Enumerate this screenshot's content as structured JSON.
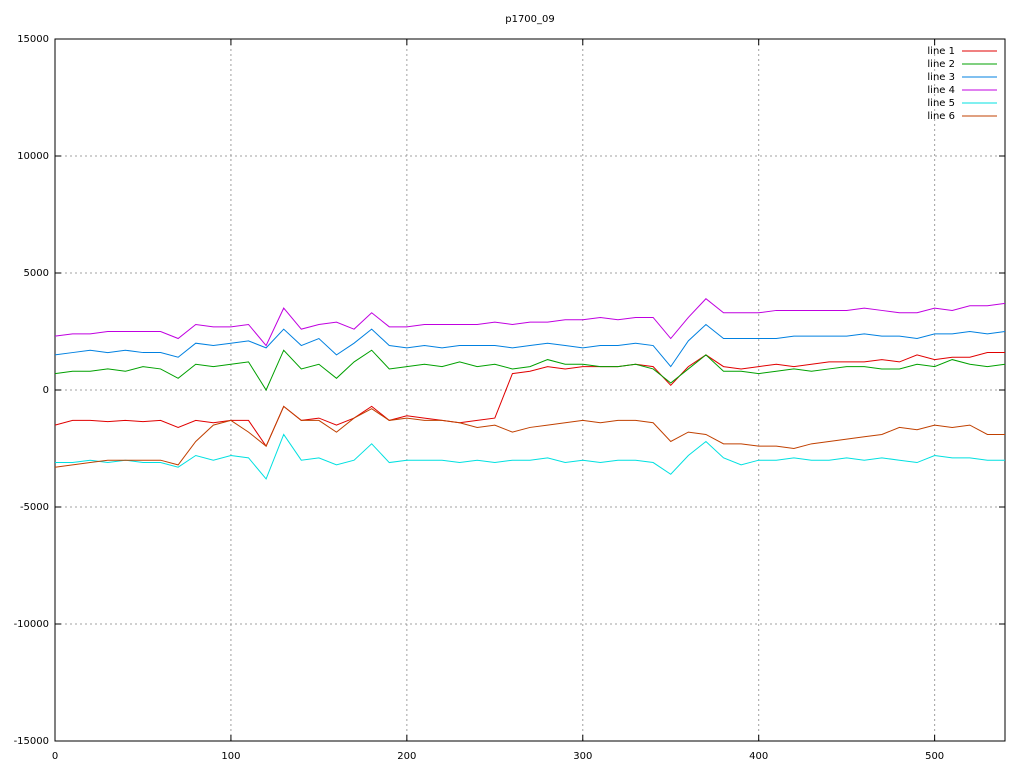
{
  "chart_data": {
    "type": "line",
    "title": "p1700_09",
    "x": [
      0,
      10,
      20,
      30,
      40,
      50,
      60,
      70,
      80,
      90,
      100,
      110,
      120,
      130,
      140,
      150,
      160,
      170,
      180,
      190,
      200,
      210,
      220,
      230,
      240,
      250,
      260,
      270,
      280,
      290,
      300,
      310,
      320,
      330,
      340,
      350,
      360,
      370,
      380,
      390,
      400,
      410,
      420,
      430,
      440,
      450,
      460,
      470,
      480,
      490,
      500,
      510,
      520,
      530,
      540
    ],
    "xlim": [
      0,
      540
    ],
    "xticks": [
      0,
      100,
      200,
      300,
      400,
      500
    ],
    "ylim": [
      -15000,
      15000
    ],
    "yticks": [
      -15000,
      -10000,
      -5000,
      0,
      5000,
      10000,
      15000
    ],
    "grid": true,
    "legend": "top-right",
    "series": [
      {
        "name": "line 1",
        "color": "#e00000",
        "values": [
          -1500,
          -1300,
          -1300,
          -1350,
          -1300,
          -1350,
          -1300,
          -1600,
          -1300,
          -1400,
          -1300,
          -1300,
          -2400,
          -700,
          -1300,
          -1200,
          -1500,
          -1200,
          -700,
          -1300,
          -1100,
          -1200,
          -1300,
          -1400,
          -1300,
          -1200,
          700,
          800,
          1000,
          900,
          1000,
          1000,
          1000,
          1100,
          1000,
          200,
          1000,
          1500,
          1000,
          900,
          1000,
          1100,
          1000,
          1100,
          1200,
          1200,
          1200,
          1300,
          1200,
          1500,
          1300,
          1400,
          1400,
          1600,
          1600
        ]
      },
      {
        "name": "line 2",
        "color": "#00a000",
        "values": [
          700,
          800,
          800,
          900,
          800,
          1000,
          900,
          500,
          1100,
          1000,
          1100,
          1200,
          0,
          1700,
          900,
          1100,
          500,
          1200,
          1700,
          900,
          1000,
          1100,
          1000,
          1200,
          1000,
          1100,
          900,
          1000,
          1300,
          1100,
          1100,
          1000,
          1000,
          1100,
          900,
          300,
          900,
          1500,
          800,
          800,
          700,
          800,
          900,
          800,
          900,
          1000,
          1000,
          900,
          900,
          1100,
          1000,
          1300,
          1100,
          1000,
          1100
        ]
      },
      {
        "name": "line 3",
        "color": "#0080e0",
        "values": [
          1500,
          1600,
          1700,
          1600,
          1700,
          1600,
          1600,
          1400,
          2000,
          1900,
          2000,
          2100,
          1800,
          2600,
          1900,
          2200,
          1500,
          2000,
          2600,
          1900,
          1800,
          1900,
          1800,
          1900,
          1900,
          1900,
          1800,
          1900,
          2000,
          1900,
          1800,
          1900,
          1900,
          2000,
          1900,
          1000,
          2100,
          2800,
          2200,
          2200,
          2200,
          2200,
          2300,
          2300,
          2300,
          2300,
          2400,
          2300,
          2300,
          2200,
          2400,
          2400,
          2500,
          2400,
          2500
        ]
      },
      {
        "name": "line 4",
        "color": "#c000e0",
        "values": [
          2300,
          2400,
          2400,
          2500,
          2500,
          2500,
          2500,
          2200,
          2800,
          2700,
          2700,
          2800,
          1900,
          3500,
          2600,
          2800,
          2900,
          2600,
          3300,
          2700,
          2700,
          2800,
          2800,
          2800,
          2800,
          2900,
          2800,
          2900,
          2900,
          3000,
          3000,
          3100,
          3000,
          3100,
          3100,
          2200,
          3100,
          3900,
          3300,
          3300,
          3300,
          3400,
          3400,
          3400,
          3400,
          3400,
          3500,
          3400,
          3300,
          3300,
          3500,
          3400,
          3600,
          3600,
          3700
        ]
      },
      {
        "name": "line 5",
        "color": "#00e0e0",
        "values": [
          -3100,
          -3100,
          -3000,
          -3100,
          -3000,
          -3100,
          -3100,
          -3300,
          -2800,
          -3000,
          -2800,
          -2900,
          -3800,
          -1900,
          -3000,
          -2900,
          -3200,
          -3000,
          -2300,
          -3100,
          -3000,
          -3000,
          -3000,
          -3100,
          -3000,
          -3100,
          -3000,
          -3000,
          -2900,
          -3100,
          -3000,
          -3100,
          -3000,
          -3000,
          -3100,
          -3600,
          -2800,
          -2200,
          -2900,
          -3200,
          -3000,
          -3000,
          -2900,
          -3000,
          -3000,
          -2900,
          -3000,
          -2900,
          -3000,
          -3100,
          -2800,
          -2900,
          -2900,
          -3000,
          -3000
        ]
      },
      {
        "name": "line 6",
        "color": "#c04000",
        "values": [
          -3300,
          -3200,
          -3100,
          -3000,
          -3000,
          -3000,
          -3000,
          -3200,
          -2200,
          -1500,
          -1300,
          -1800,
          -2400,
          -700,
          -1300,
          -1300,
          -1800,
          -1200,
          -800,
          -1300,
          -1200,
          -1300,
          -1300,
          -1400,
          -1600,
          -1500,
          -1800,
          -1600,
          -1500,
          -1400,
          -1300,
          -1400,
          -1300,
          -1300,
          -1400,
          -2200,
          -1800,
          -1900,
          -2300,
          -2300,
          -2400,
          -2400,
          -2500,
          -2300,
          -2200,
          -2100,
          -2000,
          -1900,
          -1600,
          -1700,
          -1500,
          -1600,
          -1500,
          -1900,
          -1900
        ]
      }
    ]
  }
}
